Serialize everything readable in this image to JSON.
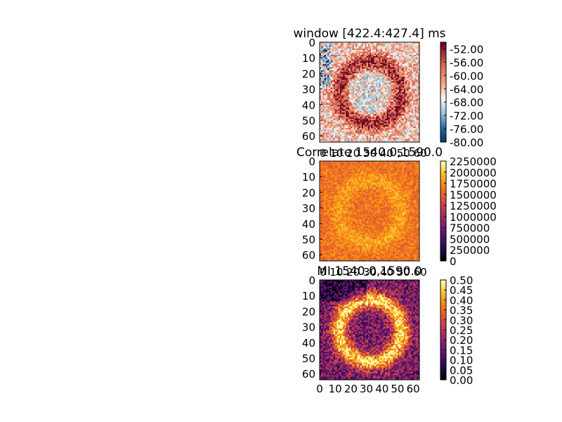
{
  "chart_data": [
    {
      "type": "heatmap",
      "title": "window [422.4:427.4] ms",
      "colormap": "RdBu_r",
      "xlim": [
        0,
        64
      ],
      "ylim": [
        64,
        0
      ],
      "xticks": [],
      "yticks": [
        0,
        10,
        20,
        30,
        40,
        50,
        60
      ],
      "colorbar": {
        "min": -80,
        "max": -50,
        "ticks": [
          -52,
          -56,
          -60,
          -64,
          -68,
          -72,
          -76,
          -80
        ]
      },
      "pattern": "ring",
      "ring_radius": 20,
      "center": [
        32,
        32
      ]
    },
    {
      "type": "heatmap",
      "title": "Correlate 1540.0,1590.0",
      "colormap": "inferno",
      "xlim": [
        0,
        64
      ],
      "ylim": [
        64,
        0
      ],
      "xticks": [],
      "yticks": [
        0,
        10,
        20,
        30,
        40,
        50,
        60
      ],
      "x_tick_overlap_text": "0 10 20 30 40 50 60",
      "colorbar": {
        "min": 0,
        "max": 2250000,
        "ticks": [
          2250000,
          2000000,
          1750000,
          1500000,
          1250000,
          1000000,
          750000,
          500000,
          250000,
          0
        ]
      },
      "pattern": "ring",
      "ring_radius": 20,
      "center": [
        32,
        32
      ]
    },
    {
      "type": "heatmap",
      "title": "MI 1540.0,1590.0",
      "colormap": "inferno",
      "xlim": [
        0,
        64
      ],
      "ylim": [
        64,
        0
      ],
      "xticks": [
        0,
        10,
        20,
        30,
        40,
        50,
        60
      ],
      "yticks": [
        0,
        10,
        20,
        30,
        40,
        50,
        60
      ],
      "x_tick_overlap_text": "0 10 20 30 40 50 60",
      "colorbar": {
        "min": 0,
        "max": 0.5,
        "ticks": [
          0.5,
          0.45,
          0.4,
          0.35,
          0.3,
          0.25,
          0.2,
          0.15,
          0.1,
          0.05,
          0.0
        ]
      },
      "pattern": "ring",
      "ring_radius": 20,
      "center": [
        32,
        32
      ]
    }
  ]
}
